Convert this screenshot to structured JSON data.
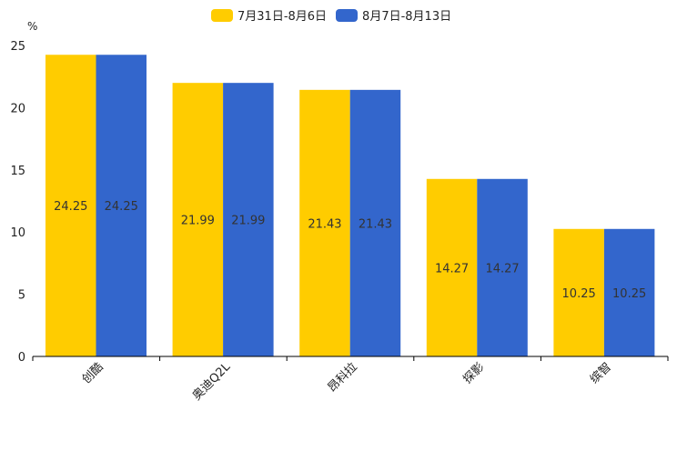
{
  "chart_data": {
    "type": "bar",
    "title": "",
    "ylabel": "%",
    "xlabel": "",
    "ylim": [
      0,
      25
    ],
    "yticks": [
      0,
      5,
      10,
      15,
      20,
      25
    ],
    "categories": [
      "创酷",
      "奥迪Q2L",
      "昂科拉",
      "探影",
      "缤智"
    ],
    "series": [
      {
        "name": "7月31日-8月6日",
        "color": "#FFCC00",
        "values": [
          24.25,
          21.99,
          21.43,
          14.27,
          10.25
        ]
      },
      {
        "name": "8月7日-8月13日",
        "color": "#3366CC",
        "values": [
          24.25,
          21.99,
          21.43,
          14.27,
          10.25
        ]
      }
    ],
    "legend_position": "top-center",
    "grid": false
  }
}
